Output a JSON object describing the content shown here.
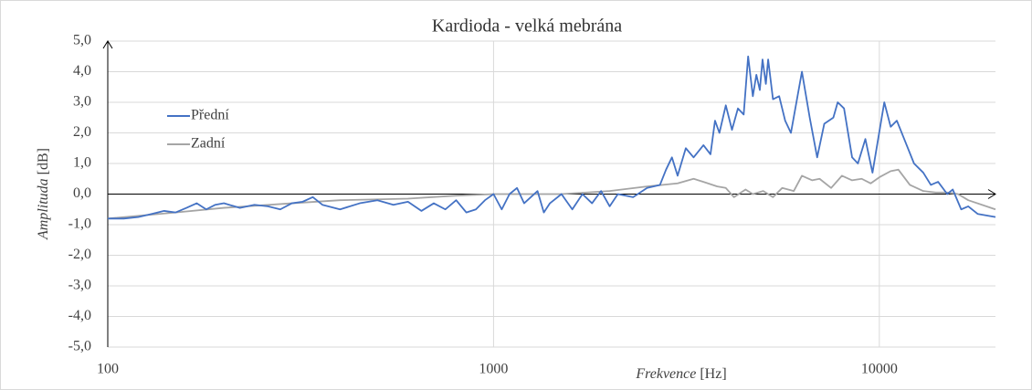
{
  "chart_data": {
    "type": "line",
    "title": "Kardioda - velká mebrána",
    "x_label": "Frekvence",
    "x_unit": "[Hz]",
    "y_label": "Amplituda",
    "y_unit": "[dB]",
    "xscale": "log",
    "xlim": [
      100,
      20000
    ],
    "xticks": [
      100,
      1000,
      10000
    ],
    "ylim": [
      -5,
      5
    ],
    "yticks": [
      {
        "value": -5,
        "label": "-5,0"
      },
      {
        "value": -4,
        "label": "-4,0"
      },
      {
        "value": -3,
        "label": "-3,0"
      },
      {
        "value": -2,
        "label": "-2,0"
      },
      {
        "value": -1,
        "label": "-1,0"
      },
      {
        "value": 0,
        "label": "0,0"
      },
      {
        "value": 1,
        "label": "1,0"
      },
      {
        "value": 2,
        "label": "2,0"
      },
      {
        "value": 3,
        "label": "3,0"
      },
      {
        "value": 4,
        "label": "4,0"
      },
      {
        "value": 5,
        "label": "5,0"
      }
    ],
    "grid": true,
    "legend": "left",
    "series": [
      {
        "name": "Přední",
        "color": "#4472c4",
        "x": [
          100,
          110,
          120,
          130,
          140,
          150,
          160,
          170,
          180,
          190,
          200,
          220,
          240,
          260,
          280,
          300,
          320,
          340,
          360,
          400,
          450,
          500,
          550,
          600,
          650,
          700,
          750,
          800,
          850,
          900,
          950,
          1000,
          1050,
          1100,
          1150,
          1200,
          1300,
          1350,
          1400,
          1500,
          1600,
          1700,
          1800,
          1900,
          2000,
          2100,
          2300,
          2500,
          2700,
          2800,
          2900,
          3000,
          3150,
          3300,
          3500,
          3650,
          3750,
          3850,
          4000,
          4150,
          4300,
          4450,
          4570,
          4700,
          4800,
          4900,
          4980,
          5080,
          5150,
          5300,
          5500,
          5700,
          5900,
          6300,
          6600,
          6900,
          7200,
          7600,
          7800,
          8100,
          8500,
          8800,
          9200,
          9600,
          10300,
          10700,
          11100,
          11600,
          12300,
          13000,
          13600,
          14200,
          15000,
          15500,
          16300,
          17000,
          18000,
          20000
        ],
        "values": [
          -0.8,
          -0.8,
          -0.75,
          -0.65,
          -0.55,
          -0.6,
          -0.45,
          -0.3,
          -0.5,
          -0.35,
          -0.3,
          -0.45,
          -0.35,
          -0.4,
          -0.5,
          -0.3,
          -0.25,
          -0.1,
          -0.35,
          -0.5,
          -0.3,
          -0.2,
          -0.35,
          -0.25,
          -0.55,
          -0.3,
          -0.5,
          -0.2,
          -0.6,
          -0.5,
          -0.2,
          0.0,
          -0.5,
          0.0,
          0.2,
          -0.3,
          0.1,
          -0.6,
          -0.3,
          0.0,
          -0.5,
          0.0,
          -0.3,
          0.1,
          -0.4,
          0.0,
          -0.1,
          0.2,
          0.3,
          0.8,
          1.2,
          0.6,
          1.5,
          1.2,
          1.6,
          1.3,
          2.4,
          2.0,
          2.9,
          2.1,
          2.8,
          2.6,
          4.5,
          3.2,
          3.9,
          3.4,
          4.4,
          3.6,
          4.4,
          3.1,
          3.2,
          2.4,
          2.0,
          4.0,
          2.5,
          1.2,
          2.3,
          2.5,
          3.0,
          2.8,
          1.2,
          1.0,
          1.8,
          0.7,
          3.0,
          2.2,
          2.4,
          1.8,
          1.0,
          0.7,
          0.3,
          0.4,
          0.0,
          0.15,
          -0.5,
          -0.4,
          -0.65,
          -0.75
        ]
      },
      {
        "name": "Zadní",
        "color": "#a5a5a5",
        "x": [
          100,
          150,
          200,
          300,
          400,
          600,
          800,
          1000,
          1500,
          2000,
          2500,
          3000,
          3300,
          3500,
          3800,
          4000,
          4200,
          4500,
          4700,
          5000,
          5300,
          5600,
          6000,
          6300,
          6700,
          7000,
          7500,
          8000,
          8500,
          9000,
          9500,
          10000,
          10700,
          11200,
          12000,
          13000,
          14000,
          15000,
          16000,
          17000,
          20000
        ],
        "values": [
          -0.8,
          -0.6,
          -0.45,
          -0.3,
          -0.2,
          -0.15,
          -0.05,
          0.0,
          0.0,
          0.1,
          0.25,
          0.35,
          0.5,
          0.4,
          0.25,
          0.2,
          -0.1,
          0.15,
          0.0,
          0.1,
          -0.1,
          0.2,
          0.1,
          0.6,
          0.45,
          0.5,
          0.2,
          0.6,
          0.45,
          0.5,
          0.35,
          0.55,
          0.75,
          0.8,
          0.3,
          0.1,
          0.05,
          0.05,
          0.0,
          -0.2,
          -0.5
        ]
      }
    ]
  }
}
